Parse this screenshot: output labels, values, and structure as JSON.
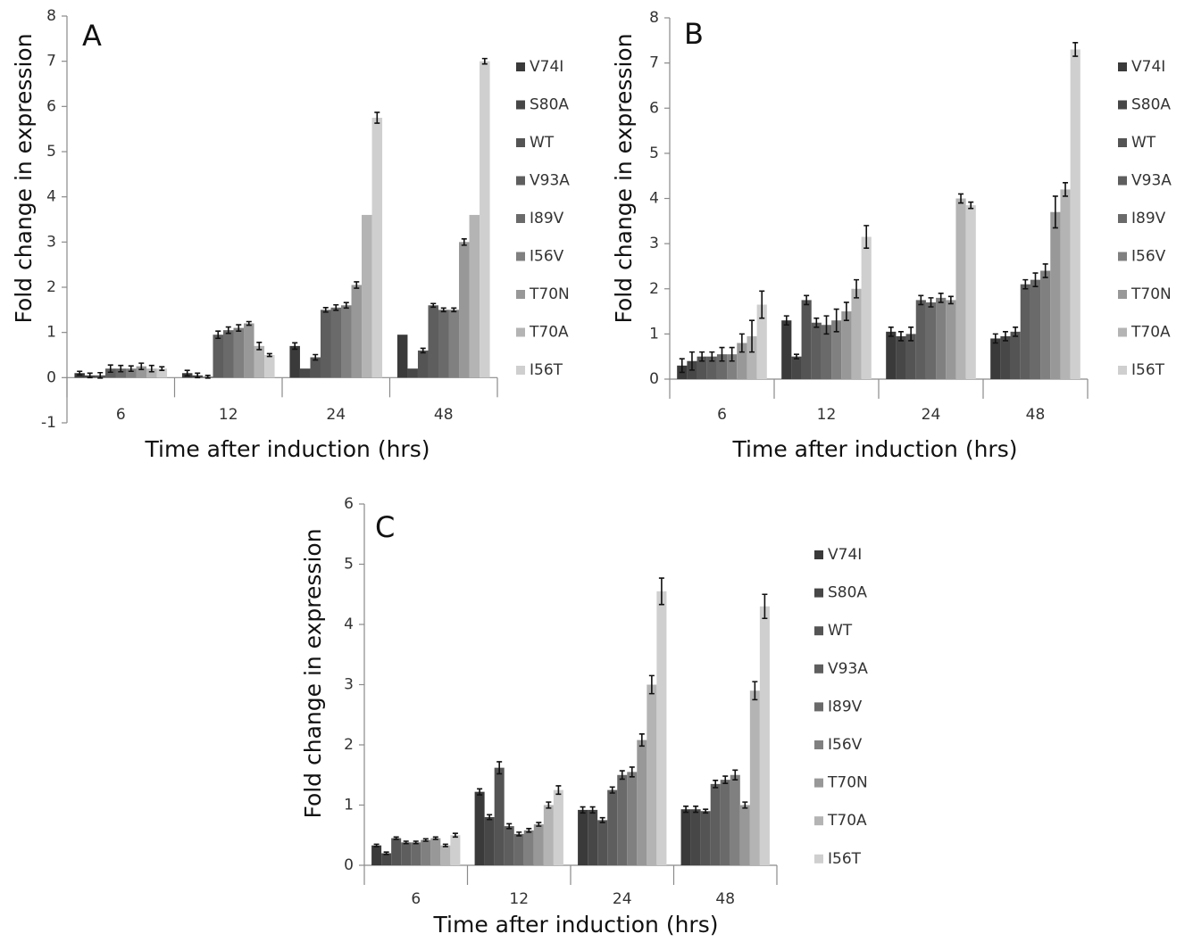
{
  "chart_data": [
    {
      "type": "bar",
      "title": "A",
      "y_label": "Fold change in expression",
      "x_label": "Time after induction (hrs)",
      "categories": [
        "6",
        "12",
        "24",
        "48"
      ],
      "ylim": [
        -1,
        8
      ],
      "yticks": [
        -1,
        0,
        1,
        2,
        3,
        4,
        5,
        6,
        7,
        8
      ],
      "grid": false,
      "series": [
        {
          "name": "V74I",
          "color": "#3a3a3a",
          "values": [
            0.1,
            0.1,
            0.7,
            0.95
          ],
          "errors": [
            0.04,
            0.06,
            0.07,
            null
          ]
        },
        {
          "name": "S80A",
          "color": "#474747",
          "values": [
            0.05,
            0.05,
            0.2,
            0.2
          ],
          "errors": [
            0.05,
            0.05,
            null,
            null
          ]
        },
        {
          "name": "WT",
          "color": "#545454",
          "values": [
            0.05,
            0.02,
            0.45,
            0.6
          ],
          "errors": [
            0.06,
            0.03,
            0.06,
            0.05
          ]
        },
        {
          "name": "V93A",
          "color": "#5e5e5e",
          "values": [
            0.2,
            0.95,
            1.5,
            1.6
          ],
          "errors": [
            0.08,
            0.08,
            0.05,
            0.04
          ]
        },
        {
          "name": "I89V",
          "color": "#6a6a6a",
          "values": [
            0.2,
            1.05,
            1.55,
            1.5
          ],
          "errors": [
            0.07,
            0.07,
            0.06,
            0.04
          ]
        },
        {
          "name": "I56V",
          "color": "#808080",
          "values": [
            0.2,
            1.1,
            1.6,
            1.5
          ],
          "errors": [
            0.06,
            0.07,
            0.06,
            0.04
          ]
        },
        {
          "name": "T70N",
          "color": "#989898",
          "values": [
            0.25,
            1.2,
            2.05,
            3.0
          ],
          "errors": [
            0.07,
            0.04,
            0.07,
            0.07
          ]
        },
        {
          "name": "T70A",
          "color": "#b4b4b4",
          "values": [
            0.2,
            0.7,
            3.6,
            3.6
          ],
          "errors": [
            0.07,
            0.08,
            null,
            null
          ]
        },
        {
          "name": "I56T",
          "color": "#cfcfcf",
          "values": [
            0.2,
            0.5,
            5.75,
            7.0
          ],
          "errors": [
            0.04,
            0.03,
            0.12,
            0.06
          ]
        }
      ]
    },
    {
      "type": "bar",
      "title": "B",
      "y_label": "Fold change in expression",
      "x_label": "Time after induction (hrs)",
      "categories": [
        "6",
        "12",
        "24",
        "48"
      ],
      "ylim": [
        0,
        8
      ],
      "yticks": [
        0,
        1,
        2,
        3,
        4,
        5,
        6,
        7,
        8
      ],
      "grid": false,
      "series": [
        {
          "name": "V74I",
          "color": "#3a3a3a",
          "values": [
            0.3,
            1.3,
            1.05,
            0.9
          ],
          "errors": [
            0.15,
            0.1,
            0.1,
            0.1
          ]
        },
        {
          "name": "S80A",
          "color": "#474747",
          "values": [
            0.4,
            0.5,
            0.95,
            0.95
          ],
          "errors": [
            0.2,
            0.05,
            0.1,
            0.1
          ]
        },
        {
          "name": "WT",
          "color": "#545454",
          "values": [
            0.5,
            1.75,
            1.0,
            1.05
          ],
          "errors": [
            0.1,
            0.1,
            0.15,
            0.1
          ]
        },
        {
          "name": "V93A",
          "color": "#5e5e5e",
          "values": [
            0.5,
            1.25,
            1.75,
            2.1
          ],
          "errors": [
            0.1,
            0.1,
            0.1,
            0.1
          ]
        },
        {
          "name": "I89V",
          "color": "#6a6a6a",
          "values": [
            0.55,
            1.2,
            1.7,
            2.2
          ],
          "errors": [
            0.15,
            0.2,
            0.1,
            0.15
          ]
        },
        {
          "name": "I56V",
          "color": "#808080",
          "values": [
            0.55,
            1.3,
            1.8,
            2.4
          ],
          "errors": [
            0.15,
            0.25,
            0.1,
            0.15
          ]
        },
        {
          "name": "T70N",
          "color": "#989898",
          "values": [
            0.8,
            1.5,
            1.75,
            3.7
          ],
          "errors": [
            0.2,
            0.2,
            0.08,
            0.35
          ]
        },
        {
          "name": "T70A",
          "color": "#b4b4b4",
          "values": [
            0.95,
            2.0,
            4.0,
            4.2
          ],
          "errors": [
            0.35,
            0.2,
            0.1,
            0.15
          ]
        },
        {
          "name": "I56T",
          "color": "#cfcfcf",
          "values": [
            1.65,
            3.15,
            3.85,
            7.3
          ],
          "errors": [
            0.3,
            0.25,
            0.07,
            0.15
          ]
        }
      ]
    },
    {
      "type": "bar",
      "title": "C",
      "y_label": "Fold change in expression",
      "x_label": "Time after induction (hrs)",
      "categories": [
        "6",
        "12",
        "24",
        "48"
      ],
      "ylim": [
        0,
        6
      ],
      "yticks": [
        0,
        1,
        2,
        3,
        4,
        5,
        6
      ],
      "grid": false,
      "series": [
        {
          "name": "V74I",
          "color": "#3a3a3a",
          "values": [
            0.33,
            1.22,
            0.92,
            0.93
          ],
          "errors": [
            0.02,
            0.05,
            0.05,
            0.05
          ]
        },
        {
          "name": "S80A",
          "color": "#474747",
          "values": [
            0.2,
            0.8,
            0.92,
            0.93
          ],
          "errors": [
            0.02,
            0.04,
            0.05,
            0.05
          ]
        },
        {
          "name": "WT",
          "color": "#545454",
          "values": [
            0.45,
            1.62,
            0.75,
            0.9
          ],
          "errors": [
            0.02,
            0.1,
            0.04,
            0.03
          ]
        },
        {
          "name": "V93A",
          "color": "#5e5e5e",
          "values": [
            0.38,
            0.65,
            1.25,
            1.35
          ],
          "errors": [
            0.02,
            0.04,
            0.05,
            0.06
          ]
        },
        {
          "name": "I89V",
          "color": "#6a6a6a",
          "values": [
            0.38,
            0.52,
            1.5,
            1.42
          ],
          "errors": [
            0.02,
            0.03,
            0.07,
            0.06
          ]
        },
        {
          "name": "I56V",
          "color": "#808080",
          "values": [
            0.42,
            0.58,
            1.55,
            1.5
          ],
          "errors": [
            0.02,
            0.03,
            0.08,
            0.08
          ]
        },
        {
          "name": "T70N",
          "color": "#989898",
          "values": [
            0.45,
            0.68,
            2.08,
            1.0
          ],
          "errors": [
            0.02,
            0.03,
            0.1,
            0.05
          ]
        },
        {
          "name": "T70A",
          "color": "#b4b4b4",
          "values": [
            0.33,
            1.0,
            3.0,
            2.9
          ],
          "errors": [
            0.02,
            0.05,
            0.15,
            0.15
          ]
        },
        {
          "name": "I56T",
          "color": "#cfcfcf",
          "values": [
            0.5,
            1.25,
            4.55,
            4.3
          ],
          "errors": [
            0.03,
            0.07,
            0.22,
            0.2
          ]
        }
      ]
    }
  ]
}
